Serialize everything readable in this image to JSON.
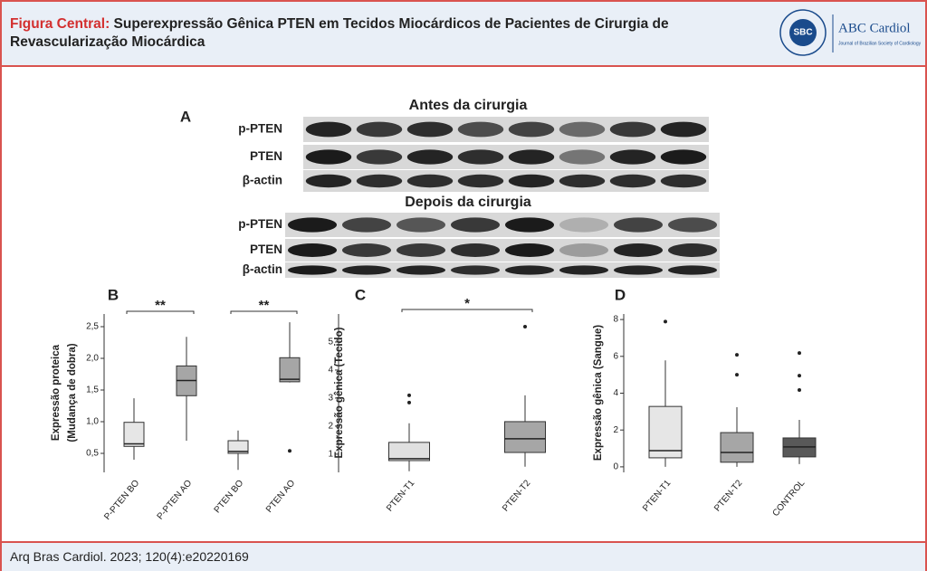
{
  "header": {
    "label": "Figura Central:",
    "title_line1": "Superexpressão Gênica PTEN em Tecidos Miocárdicos de Pacientes de Cirurgia de",
    "title_line2": "Revascularização Miocárdica",
    "logo_text": "SBC",
    "journal": "ABC Cardiol",
    "journal_sub": "Journal of Brazilian Society of Cardiology"
  },
  "panel_a": {
    "letter": "A",
    "before_title": "Antes da cirurgia",
    "after_title": "Depois da cirurgia",
    "before_rows": [
      "p-PTEN",
      "PTEN",
      "β-actin"
    ],
    "after_rows": [
      "p-PTEN",
      "PTEN",
      "β-actin"
    ]
  },
  "chart_data": [
    {
      "type": "box",
      "letter": "B",
      "ylabel": [
        "Expressão proteica",
        "(Mudança de dobra)"
      ],
      "ylim": [
        0.2,
        2.7
      ],
      "yticks": [
        {
          "value": 0.5,
          "label": "0,5"
        },
        {
          "value": 1,
          "label": "1,0"
        },
        {
          "value": 1.5,
          "label": "1,5"
        },
        {
          "value": 2,
          "label": "2,0"
        },
        {
          "value": 2.5,
          "label": "2,5"
        }
      ],
      "categories": [
        "P-PTEN BO",
        "P-PTEN AO",
        "PTEN BO",
        "PTEN AO"
      ],
      "annotations": [
        "**",
        "**"
      ],
      "boxes": [
        {
          "min": 0.4,
          "q1": 0.61,
          "median": 0.65,
          "q3": 0.99,
          "max": 1.37,
          "outliers": [],
          "color": "#e6e6e6"
        },
        {
          "min": 0.7,
          "q1": 1.41,
          "median": 1.65,
          "q3": 1.88,
          "max": 2.34,
          "outliers": [],
          "color": "#a6a6a6"
        },
        {
          "min": 0.24,
          "q1": 0.5,
          "median": 0.53,
          "q3": 0.7,
          "max": 0.86,
          "outliers": [],
          "color": "#e6e6e6"
        },
        {
          "min": 1.62,
          "q1": 1.63,
          "median": 1.67,
          "q3": 2.01,
          "max": 2.57,
          "outliers": [
            0.54
          ],
          "color": "#a6a6a6"
        }
      ]
    },
    {
      "type": "box",
      "letter": "C",
      "ylabel": [
        "Expressão gênica (Tecido)"
      ],
      "ylim": [
        0.35,
        6
      ],
      "yticks": [
        1,
        2,
        3,
        4,
        5
      ],
      "categories": [
        "PTEN-T1",
        "PTEN-T2"
      ],
      "annotations": [
        "*"
      ],
      "boxes": [
        {
          "min": 0.39,
          "q1": 0.77,
          "median": 0.84,
          "q3": 1.42,
          "max": 2.1,
          "outliers": [
            2.84,
            3.1
          ],
          "color": "#e0e0e0"
        },
        {
          "min": 0.55,
          "q1": 1.06,
          "median": 1.55,
          "q3": 2.16,
          "max": 3.1,
          "outliers": [
            5.55
          ],
          "color": "#a6a6a6"
        }
      ]
    },
    {
      "type": "box",
      "letter": "D",
      "ylabel": [
        "Expressão gênica (Sangue)"
      ],
      "ylim": [
        -0.3,
        8.3
      ],
      "yticks": [
        0,
        2,
        4,
        6,
        8
      ],
      "categories": [
        "PTEN-T1",
        "PTEN-T2",
        "CONTROL"
      ],
      "annotations": [],
      "boxes": [
        {
          "min": 0,
          "q1": 0.49,
          "median": 0.88,
          "q3": 3.28,
          "max": 5.78,
          "outliers": [
            7.89
          ],
          "color": "#e6e6e6"
        },
        {
          "min": 0,
          "q1": 0.25,
          "median": 0.78,
          "q3": 1.86,
          "max": 3.24,
          "outliers": [
            5,
            6.08
          ],
          "color": "#a6a6a6"
        },
        {
          "min": 0.15,
          "q1": 0.54,
          "median": 1.08,
          "q3": 1.57,
          "max": 2.55,
          "outliers": [
            4.17,
            4.95,
            6.18
          ],
          "color": "#595959"
        }
      ]
    }
  ],
  "footer": {
    "citation": "Arq Bras Cardiol. 2023; 120(4):e20220169"
  }
}
